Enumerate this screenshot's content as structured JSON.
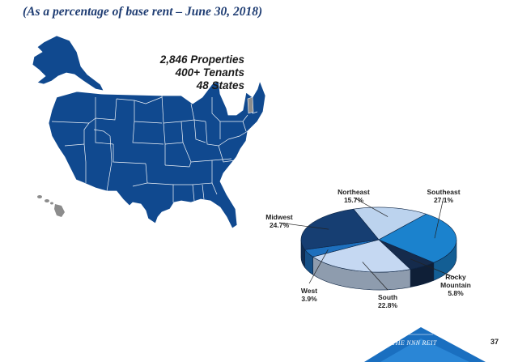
{
  "subtitle": "(As a percentage of base rent – June 30, 2018)",
  "stats": {
    "properties": "2,846 Properties",
    "tenants": "400+ Tenants",
    "states": "48 States"
  },
  "map_colors": {
    "states": "#10498f",
    "excluded": "#8c8c8c",
    "borders": "#ffffff"
  },
  "chart_data": {
    "type": "pie",
    "title": "",
    "slices": [
      {
        "label": "Northeast",
        "value": 15.7,
        "display": "15.7%",
        "color": "#bcd3ee"
      },
      {
        "label": "Southeast",
        "value": 27.1,
        "display": "27.1%",
        "color": "#1b82cd"
      },
      {
        "label": "Rocky Mountain",
        "value": 5.8,
        "display": "5.8%",
        "color": "#152b4c"
      },
      {
        "label": "South",
        "value": 22.8,
        "display": "22.8%",
        "color": "#c5d8f2"
      },
      {
        "label": "West",
        "value": 3.9,
        "display": "3.9%",
        "color": "#1d6fbd"
      },
      {
        "label": "Midwest",
        "value": 24.7,
        "display": "24.7%",
        "color": "#163e72"
      }
    ],
    "legend": "none"
  },
  "footer": {
    "logo_text": "THE NNN REIT",
    "page_number": "37"
  }
}
